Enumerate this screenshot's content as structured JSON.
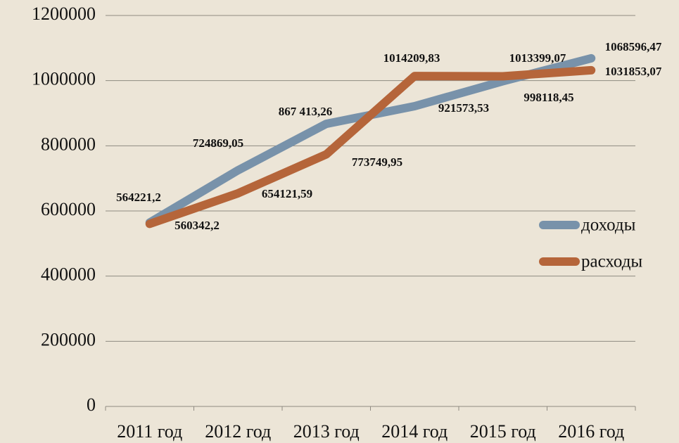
{
  "chart_data": {
    "type": "line",
    "categories": [
      "2011 год",
      "2012 год",
      "2013 год",
      "2014 год",
      "2015 год",
      "2016 год"
    ],
    "series": [
      {
        "name": "доходы",
        "color": "#7892aa",
        "values": [
          564221.2,
          724869.05,
          867413.26,
          921573.53,
          998118.45,
          1068596.47
        ],
        "value_labels": [
          "564221,2",
          "724869,05",
          "867 413,26",
          "921573,53",
          "998118,45",
          "1068596,47"
        ]
      },
      {
        "name": "расходы",
        "color": "#b5653a",
        "values": [
          560342.2,
          654121.59,
          773749.95,
          1014209.83,
          1013399.07,
          1031853.07
        ],
        "value_labels": [
          "560342,2",
          "654121,59",
          "773749,95",
          "1014209,83",
          "1013399,07",
          "1031853,07"
        ]
      }
    ],
    "ylim": [
      0,
      1200000
    ],
    "yticks": [
      0,
      200000,
      400000,
      600000,
      800000,
      1000000,
      1200000
    ],
    "grid": true,
    "legend": "right"
  }
}
